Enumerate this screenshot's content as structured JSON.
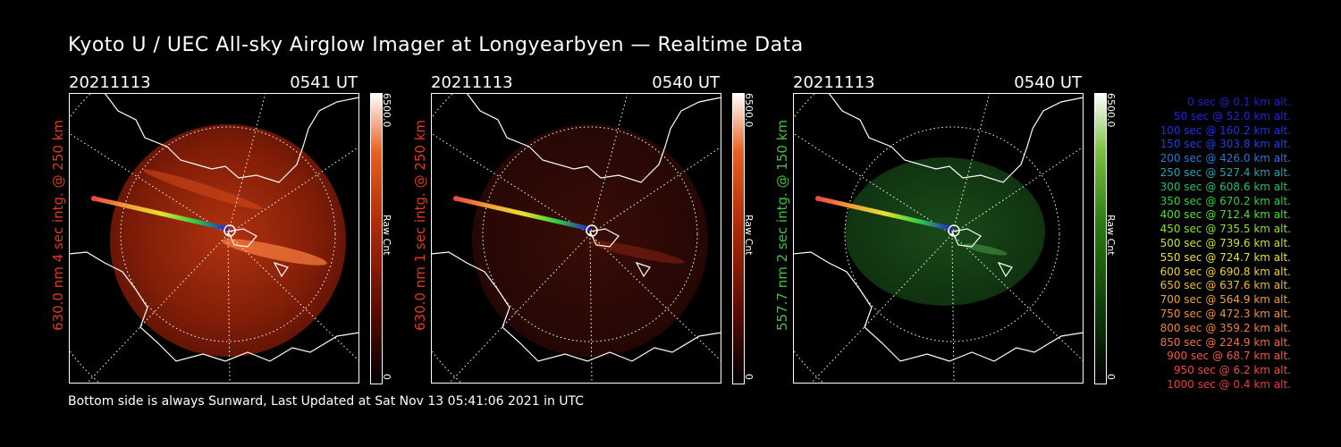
{
  "title": "Kyoto U / UEC All-sky Airglow Imager at Longyearbyen — Realtime Data",
  "panels": [
    {
      "date": "20211113",
      "time": "0541 UT",
      "ylabel": "630.0 nm 4 sec intg. @ 250 km",
      "cbar_max": "6500.0",
      "cbar_min": "0",
      "cbar_unit": "Raw Cnt",
      "color": "#e03a1a"
    },
    {
      "date": "20211113",
      "time": "0540 UT",
      "ylabel": "630.0 nm 1 sec intg. @ 250 km",
      "cbar_max": "6500.0",
      "cbar_min": "0",
      "cbar_unit": "Raw Cnt",
      "color": "#e03a1a"
    },
    {
      "date": "20211113",
      "time": "0540 UT",
      "ylabel": "557.7 nm 2 sec intg. @ 150 km",
      "cbar_max": "6500.0",
      "cbar_min": "0",
      "cbar_unit": "Raw Cnt",
      "color": "#3ec43e"
    }
  ],
  "footer": "Bottom side is always Sunward, Last Updated at Sat Nov 13 05:41:06 2021 in UTC",
  "legend": [
    {
      "text": "0 sec @   0.1 km alt.",
      "color": "#2020d0"
    },
    {
      "text": "50 sec @  52.0 km alt.",
      "color": "#2424e0"
    },
    {
      "text": "100 sec @ 160.2 km alt.",
      "color": "#2030e8"
    },
    {
      "text": "150 sec @ 303.8 km alt.",
      "color": "#2040e0"
    },
    {
      "text": "200 sec @ 426.0 km alt.",
      "color": "#2a78d8"
    },
    {
      "text": "250 sec @ 527.4 km alt.",
      "color": "#2aa0b0"
    },
    {
      "text": "300 sec @ 608.6 km alt.",
      "color": "#20c070"
    },
    {
      "text": "350 sec @ 670.2 km alt.",
      "color": "#30d040"
    },
    {
      "text": "400 sec @ 712.4 km alt.",
      "color": "#50e030"
    },
    {
      "text": "450 sec @ 735.5 km alt.",
      "color": "#90e030"
    },
    {
      "text": "500 sec @ 739.6 km alt.",
      "color": "#c8e030"
    },
    {
      "text": "550 sec @ 724.7 km alt.",
      "color": "#e8e030"
    },
    {
      "text": "600 sec @ 690.8 km alt.",
      "color": "#f0d030"
    },
    {
      "text": "650 sec @ 637.6 km alt.",
      "color": "#f0b838"
    },
    {
      "text": "700 sec @ 564.9 km alt.",
      "color": "#f0a038"
    },
    {
      "text": "750 sec @ 472.3 km alt.",
      "color": "#f09038"
    },
    {
      "text": "800 sec @ 359.2 km alt.",
      "color": "#f08038"
    },
    {
      "text": "850 sec @ 224.9 km alt.",
      "color": "#f07040"
    },
    {
      "text": "900 sec @  68.7 km alt.",
      "color": "#f05a40"
    },
    {
      "text": "950 sec @   6.2 km alt.",
      "color": "#f04a40"
    },
    {
      "text": "1000 sec @   0.4 km alt.",
      "color": "#f03a40"
    }
  ]
}
